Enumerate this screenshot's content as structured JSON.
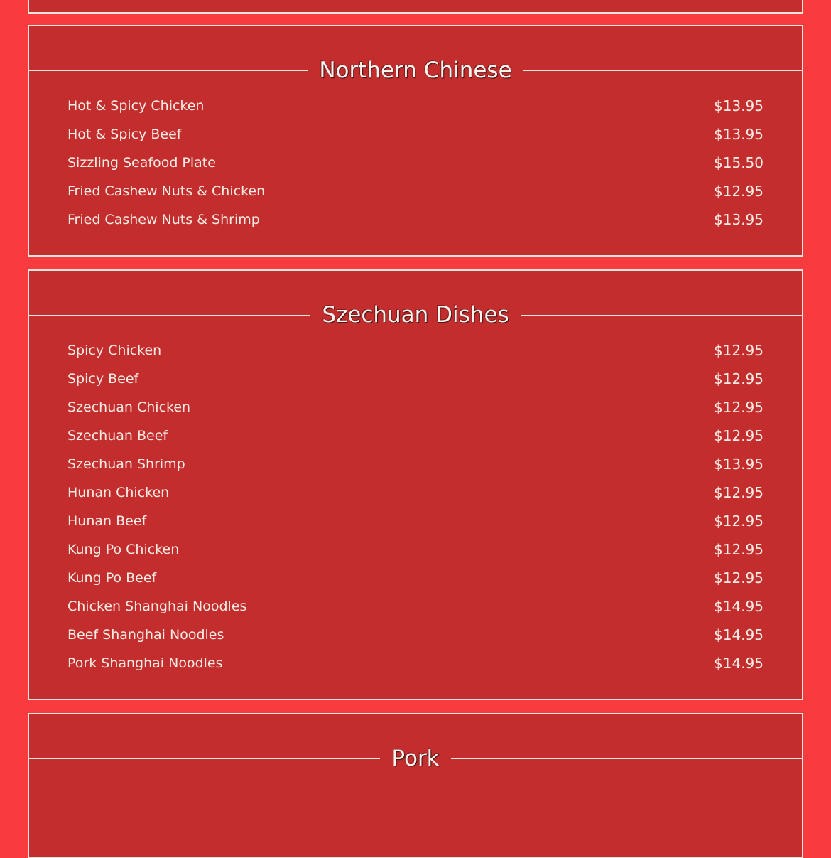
{
  "colors": {
    "page_bg": "#f73b3f",
    "card_bg": "#c32d2e",
    "border": "#f1e4dc",
    "text": "#f6ece4"
  },
  "sections": [
    {
      "title": "Northern Chinese",
      "items": [
        {
          "name": "Hot & Spicy Chicken",
          "price": "$13.95"
        },
        {
          "name": "Hot & Spicy Beef",
          "price": "$13.95"
        },
        {
          "name": "Sizzling Seafood Plate",
          "price": "$15.50"
        },
        {
          "name": "Fried Cashew Nuts & Chicken",
          "price": "$12.95"
        },
        {
          "name": "Fried Cashew Nuts & Shrimp",
          "price": "$13.95"
        }
      ]
    },
    {
      "title": "Szechuan Dishes",
      "items": [
        {
          "name": "Spicy Chicken",
          "price": "$12.95"
        },
        {
          "name": "Spicy Beef",
          "price": "$12.95"
        },
        {
          "name": "Szechuan Chicken",
          "price": "$12.95"
        },
        {
          "name": "Szechuan Beef",
          "price": "$12.95"
        },
        {
          "name": "Szechuan Shrimp",
          "price": "$13.95"
        },
        {
          "name": "Hunan Chicken",
          "price": "$12.95"
        },
        {
          "name": "Hunan Beef",
          "price": "$12.95"
        },
        {
          "name": "Kung Po Chicken",
          "price": "$12.95"
        },
        {
          "name": "Kung Po Beef",
          "price": "$12.95"
        },
        {
          "name": "Chicken Shanghai Noodles",
          "price": "$14.95"
        },
        {
          "name": "Beef Shanghai Noodles",
          "price": "$14.95"
        },
        {
          "name": "Pork Shanghai Noodles",
          "price": "$14.95"
        }
      ]
    },
    {
      "title": "Pork",
      "items": []
    }
  ]
}
